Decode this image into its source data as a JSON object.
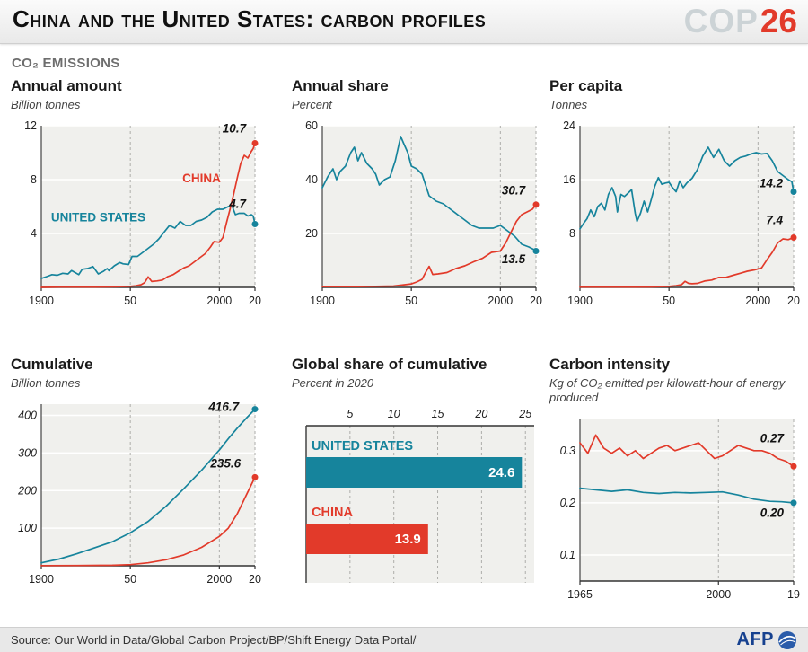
{
  "header": {
    "title": "China and the United States: carbon profiles",
    "logo_cop": "COP",
    "logo_26": "26"
  },
  "section_label": "CO₂ EMISSIONS",
  "colors": {
    "china": "#e23a2a",
    "us": "#16849c",
    "ink": "#111111"
  },
  "footer": {
    "source": "Source: Our World in Data/Global Carbon Project/BP/Shift Energy Data Portal/",
    "afp": "AFP"
  },
  "chart_data": [
    {
      "title": "Annual amount",
      "subtitle": "Billion tonnes",
      "type": "line",
      "xlim": [
        1900,
        2020
      ],
      "ylim": [
        0,
        12
      ],
      "xticks": [
        {
          "v": 1900,
          "label": "1900"
        },
        {
          "v": 1950,
          "label": "50"
        },
        {
          "v": 2000,
          "label": "2000"
        },
        {
          "v": 2020,
          "label": "20"
        }
      ],
      "yticks": [
        {
          "v": 4,
          "label": "4"
        },
        {
          "v": 8,
          "label": "8"
        },
        {
          "v": 12,
          "label": "12"
        }
      ],
      "yticks_italic": false,
      "series": [
        {
          "name": "United States",
          "color": "us",
          "x": [
            1900,
            1903,
            1906,
            1909,
            1912,
            1915,
            1917,
            1919,
            1921,
            1923,
            1926,
            1929,
            1932,
            1935,
            1937,
            1938,
            1941,
            1944,
            1946,
            1949,
            1951,
            1954,
            1957,
            1960,
            1963,
            1966,
            1969,
            1972,
            1975,
            1978,
            1981,
            1984,
            1987,
            1990,
            1993,
            1996,
            1999,
            2002,
            2005,
            2007,
            2009,
            2011,
            2014,
            2016,
            2018,
            2019,
            2020
          ],
          "y": [
            0.66,
            0.8,
            0.95,
            0.9,
            1.05,
            1.0,
            1.25,
            1.1,
            0.95,
            1.35,
            1.4,
            1.55,
            1.0,
            1.2,
            1.4,
            1.25,
            1.6,
            1.85,
            1.75,
            1.7,
            2.3,
            2.3,
            2.6,
            2.9,
            3.2,
            3.6,
            4.1,
            4.6,
            4.4,
            4.9,
            4.6,
            4.6,
            4.9,
            5.0,
            5.2,
            5.6,
            5.8,
            5.8,
            6.0,
            6.1,
            5.4,
            5.5,
            5.5,
            5.3,
            5.4,
            5.3,
            4.7
          ]
        },
        {
          "name": "China",
          "color": "china",
          "x": [
            1900,
            1910,
            1920,
            1930,
            1940,
            1950,
            1953,
            1956,
            1958,
            1960,
            1962,
            1965,
            1968,
            1971,
            1974,
            1977,
            1980,
            1983,
            1986,
            1989,
            1992,
            1995,
            1997,
            2000,
            2002,
            2004,
            2006,
            2008,
            2010,
            2012,
            2014,
            2016,
            2018,
            2019,
            2020
          ],
          "y": [
            0.0,
            0.02,
            0.02,
            0.03,
            0.04,
            0.08,
            0.12,
            0.2,
            0.35,
            0.78,
            0.44,
            0.48,
            0.55,
            0.8,
            0.95,
            1.2,
            1.45,
            1.6,
            1.9,
            2.2,
            2.5,
            3.0,
            3.4,
            3.35,
            3.7,
            4.8,
            5.8,
            6.9,
            8.1,
            9.2,
            9.8,
            9.6,
            10.1,
            10.3,
            10.7
          ]
        }
      ],
      "annotations": [
        {
          "text": "CHINA",
          "x": 1990,
          "y": 7.8,
          "color": "china",
          "cls": "ann"
        },
        {
          "text": "UNITED STATES",
          "x": 1932,
          "y": 4.9,
          "color": "us",
          "cls": "ann"
        },
        {
          "text": "10.7",
          "x": 2015,
          "y": 11.5,
          "anchor": "end",
          "cls": "val"
        },
        {
          "text": "4.7",
          "x": 2015,
          "y": 5.9,
          "anchor": "end",
          "cls": "val"
        }
      ]
    },
    {
      "title": "Annual share",
      "subtitle": "Percent",
      "type": "line",
      "xlim": [
        1900,
        2020
      ],
      "ylim": [
        0,
        60
      ],
      "xticks": [
        {
          "v": 1900,
          "label": "1900"
        },
        {
          "v": 1950,
          "label": "50"
        },
        {
          "v": 2000,
          "label": "2000"
        },
        {
          "v": 2020,
          "label": "20"
        }
      ],
      "yticks": [
        {
          "v": 20,
          "label": "20"
        },
        {
          "v": 40,
          "label": "40"
        },
        {
          "v": 60,
          "label": "60"
        }
      ],
      "yticks_italic": false,
      "series": [
        {
          "name": "United States",
          "color": "us",
          "x": [
            1900,
            1903,
            1906,
            1908,
            1910,
            1913,
            1916,
            1918,
            1920,
            1922,
            1925,
            1928,
            1930,
            1932,
            1935,
            1938,
            1941,
            1944,
            1946,
            1948,
            1950,
            1953,
            1956,
            1960,
            1964,
            1968,
            1972,
            1976,
            1980,
            1984,
            1988,
            1992,
            1996,
            2000,
            2004,
            2008,
            2012,
            2016,
            2019,
            2020
          ],
          "y": [
            37,
            41,
            44,
            40,
            43,
            45,
            50,
            52,
            47,
            50,
            46,
            44,
            42,
            38,
            40,
            41,
            47,
            56,
            53,
            50,
            45,
            44,
            42,
            34,
            32,
            31,
            29,
            27,
            25,
            23,
            22,
            22,
            22,
            23,
            21,
            19,
            16,
            15,
            14,
            13.5
          ]
        },
        {
          "name": "China",
          "color": "china",
          "x": [
            1900,
            1910,
            1920,
            1930,
            1940,
            1950,
            1953,
            1956,
            1958,
            1960,
            1962,
            1965,
            1970,
            1975,
            1980,
            1985,
            1990,
            1995,
            2000,
            2003,
            2006,
            2009,
            2012,
            2015,
            2018,
            2020
          ],
          "y": [
            0.3,
            0.3,
            0.3,
            0.4,
            0.5,
            1.3,
            2.0,
            3.0,
            5.5,
            7.8,
            4.8,
            5.0,
            5.5,
            7.0,
            8.0,
            9.5,
            10.8,
            13.0,
            13.5,
            16.5,
            20.5,
            24.5,
            27.0,
            28.0,
            29.0,
            30.7
          ]
        }
      ],
      "annotations": [
        {
          "text": "30.7",
          "x": 2014,
          "y": 34.5,
          "anchor": "end",
          "cls": "val"
        },
        {
          "text": "13.5",
          "x": 2014,
          "y": 9.0,
          "anchor": "end",
          "cls": "val"
        }
      ]
    },
    {
      "title": "Per capita",
      "subtitle": "Tonnes",
      "type": "line",
      "xlim": [
        1900,
        2020
      ],
      "ylim": [
        0,
        24
      ],
      "xticks": [
        {
          "v": 1900,
          "label": "1900"
        },
        {
          "v": 1950,
          "label": "50"
        },
        {
          "v": 2000,
          "label": "2000"
        },
        {
          "v": 2020,
          "label": "20"
        }
      ],
      "yticks": [
        {
          "v": 8,
          "label": "8"
        },
        {
          "v": 16,
          "label": "16"
        },
        {
          "v": 24,
          "label": "24"
        }
      ],
      "yticks_italic": false,
      "series": [
        {
          "name": "United States",
          "color": "us",
          "x": [
            1900,
            1902,
            1904,
            1906,
            1908,
            1910,
            1912,
            1914,
            1916,
            1918,
            1920,
            1921,
            1923,
            1925,
            1927,
            1929,
            1931,
            1932,
            1934,
            1936,
            1938,
            1940,
            1942,
            1944,
            1946,
            1948,
            1950,
            1952,
            1954,
            1956,
            1958,
            1960,
            1963,
            1966,
            1969,
            1972,
            1975,
            1978,
            1981,
            1984,
            1987,
            1990,
            1993,
            1996,
            1999,
            2002,
            2005,
            2008,
            2011,
            2014,
            2017,
            2019,
            2020
          ],
          "y": [
            8.7,
            9.5,
            10.2,
            11.5,
            10.5,
            12.0,
            12.5,
            11.5,
            13.8,
            14.8,
            13.5,
            11.2,
            13.8,
            13.5,
            14.0,
            14.5,
            11.0,
            9.8,
            11.0,
            12.8,
            11.2,
            13.0,
            15.0,
            16.3,
            15.3,
            15.5,
            15.6,
            14.8,
            14.2,
            15.8,
            14.8,
            15.5,
            16.2,
            17.5,
            19.5,
            20.8,
            19.3,
            20.5,
            18.8,
            18.0,
            18.8,
            19.3,
            19.5,
            19.8,
            20.0,
            19.8,
            19.9,
            18.8,
            17.2,
            16.6,
            16.0,
            15.7,
            14.2
          ]
        },
        {
          "name": "China",
          "color": "china",
          "x": [
            1900,
            1910,
            1920,
            1930,
            1940,
            1950,
            1954,
            1957,
            1959,
            1961,
            1963,
            1966,
            1970,
            1974,
            1978,
            1982,
            1986,
            1990,
            1994,
            1998,
            2002,
            2005,
            2008,
            2011,
            2014,
            2017,
            2020
          ],
          "y": [
            0.05,
            0.05,
            0.05,
            0.06,
            0.07,
            0.14,
            0.25,
            0.4,
            0.9,
            0.6,
            0.55,
            0.6,
            0.95,
            1.1,
            1.5,
            1.5,
            1.8,
            2.1,
            2.4,
            2.6,
            2.9,
            4.1,
            5.2,
            6.6,
            7.2,
            7.1,
            7.4
          ]
        }
      ],
      "annotations": [
        {
          "text": "14.2",
          "x": 2014,
          "y": 14.9,
          "anchor": "end",
          "cls": "val"
        },
        {
          "text": "7.4",
          "x": 2014,
          "y": 9.4,
          "anchor": "end",
          "cls": "val"
        }
      ]
    },
    {
      "title": "Cumulative",
      "subtitle": "Billion tonnes",
      "type": "line",
      "xlim": [
        1900,
        2020
      ],
      "ylim": [
        0,
        430
      ],
      "xticks": [
        {
          "v": 1900,
          "label": "1900"
        },
        {
          "v": 1950,
          "label": "50"
        },
        {
          "v": 2000,
          "label": "2000"
        },
        {
          "v": 2020,
          "label": "20"
        }
      ],
      "yticks": [
        {
          "v": 100,
          "label": "100"
        },
        {
          "v": 200,
          "label": "200"
        },
        {
          "v": 300,
          "label": "300"
        },
        {
          "v": 400,
          "label": "400"
        }
      ],
      "yticks_italic": true,
      "series": [
        {
          "name": "United States",
          "color": "us",
          "x": [
            1900,
            1910,
            1920,
            1930,
            1940,
            1950,
            1960,
            1970,
            1980,
            1990,
            2000,
            2005,
            2010,
            2015,
            2020
          ],
          "y": [
            8,
            18,
            32,
            48,
            64,
            88,
            118,
            158,
            205,
            254,
            308,
            338,
            366,
            392,
            416.7
          ]
        },
        {
          "name": "China",
          "color": "china",
          "x": [
            1900,
            1920,
            1940,
            1950,
            1960,
            1970,
            1980,
            1990,
            2000,
            2005,
            2010,
            2015,
            2020
          ],
          "y": [
            0.4,
            0.8,
            1.5,
            3,
            8,
            16,
            29,
            49,
            78,
            100,
            138,
            187,
            235.6
          ]
        }
      ],
      "annotations": [
        {
          "text": "416.7",
          "x": 2011,
          "y": 412,
          "anchor": "end",
          "cls": "val"
        },
        {
          "text": "235.6",
          "x": 2012,
          "y": 262,
          "anchor": "end",
          "cls": "val"
        }
      ]
    },
    {
      "title": "Global share of cumulative",
      "subtitle": "Percent in 2020",
      "type": "bar",
      "xlim": [
        0,
        26
      ],
      "xticks": [
        {
          "v": 5,
          "label": "5"
        },
        {
          "v": 10,
          "label": "10"
        },
        {
          "v": 15,
          "label": "15"
        },
        {
          "v": 20,
          "label": "20"
        },
        {
          "v": 25,
          "label": "25"
        }
      ],
      "bars": [
        {
          "label": "UNITED STATES",
          "value": 24.6,
          "value_label": "24.6",
          "color": "us"
        },
        {
          "label": "CHINA",
          "value": 13.9,
          "value_label": "13.9",
          "color": "china"
        }
      ]
    },
    {
      "title": "Carbon intensity",
      "subtitle": "Kg of CO₂ emitted per kilowatt-hour of energy produced",
      "type": "line",
      "xlim": [
        1965,
        2019
      ],
      "ylim": [
        0.05,
        0.36
      ],
      "xticks": [
        {
          "v": 1965,
          "label": "1965"
        },
        {
          "v": 2000,
          "label": "2000"
        },
        {
          "v": 2019,
          "label": "19"
        }
      ],
      "yticks": [
        {
          "v": 0.1,
          "label": "0.1"
        },
        {
          "v": 0.2,
          "label": "0.2"
        },
        {
          "v": 0.3,
          "label": "0.3"
        }
      ],
      "yticks_italic": true,
      "series": [
        {
          "name": "China",
          "color": "china",
          "x": [
            1965,
            1967,
            1969,
            1971,
            1973,
            1975,
            1977,
            1979,
            1981,
            1983,
            1985,
            1987,
            1989,
            1991,
            1993,
            1995,
            1997,
            1999,
            2001,
            2003,
            2005,
            2007,
            2009,
            2011,
            2013,
            2015,
            2017,
            2019
          ],
          "y": [
            0.315,
            0.295,
            0.33,
            0.305,
            0.295,
            0.305,
            0.29,
            0.3,
            0.285,
            0.295,
            0.305,
            0.31,
            0.3,
            0.305,
            0.31,
            0.315,
            0.3,
            0.285,
            0.29,
            0.3,
            0.31,
            0.305,
            0.3,
            0.3,
            0.295,
            0.285,
            0.28,
            0.27
          ]
        },
        {
          "name": "United States",
          "color": "us",
          "x": [
            1965,
            1969,
            1973,
            1977,
            1981,
            1985,
            1989,
            1993,
            1997,
            2001,
            2005,
            2009,
            2013,
            2016,
            2019
          ],
          "y": [
            0.228,
            0.225,
            0.222,
            0.225,
            0.22,
            0.218,
            0.22,
            0.219,
            0.22,
            0.221,
            0.215,
            0.207,
            0.203,
            0.202,
            0.2
          ]
        }
      ],
      "annotations": [
        {
          "text": "0.27",
          "x": 2016.5,
          "y": 0.316,
          "anchor": "end",
          "cls": "val"
        },
        {
          "text": "0.20",
          "x": 2016.5,
          "y": 0.173,
          "anchor": "end",
          "cls": "val"
        }
      ]
    }
  ]
}
